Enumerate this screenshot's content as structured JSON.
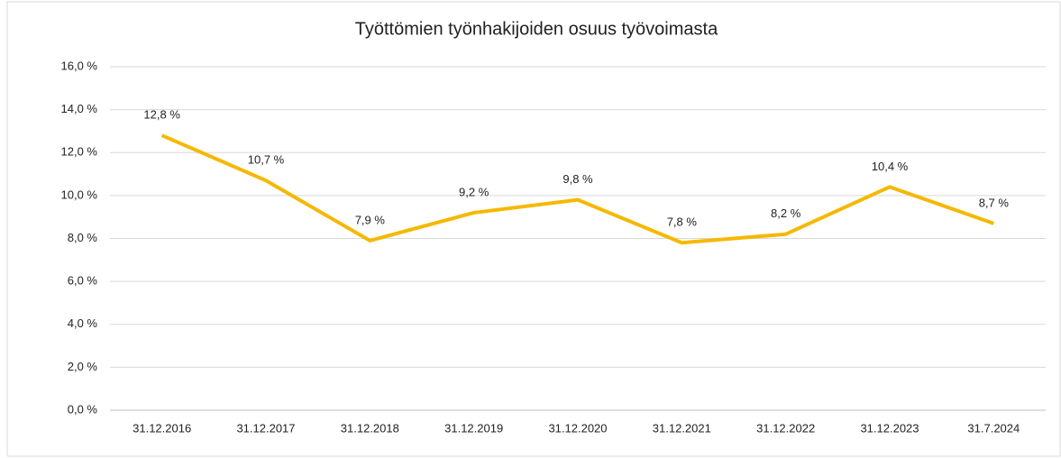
{
  "chart_data": {
    "type": "line",
    "title": "Työttömien työnhakijoiden osuus työvoimasta",
    "categories": [
      "31.12.2016",
      "31.12.2017",
      "31.12.2018",
      "31.12.2019",
      "31.12.2020",
      "31.12.2021",
      "31.12.2022",
      "31.12.2023",
      "31.7.2024"
    ],
    "series": [
      {
        "color": "#f5b800",
        "values": [
          12.8,
          10.7,
          7.9,
          9.2,
          9.8,
          7.8,
          8.2,
          10.4,
          8.7
        ],
        "value_labels": [
          "12,8 %",
          "10,7 %",
          "7,9 %",
          "9,2 %",
          "9,8 %",
          "7,8 %",
          "8,2 %",
          "10,4 %",
          "8,7 %"
        ]
      }
    ],
    "ylim": [
      0,
      16
    ],
    "yticks": [
      {
        "value": 0,
        "label": "0,0 %"
      },
      {
        "value": 2,
        "label": "2,0 %"
      },
      {
        "value": 4,
        "label": "4,0 %"
      },
      {
        "value": 6,
        "label": "6,0 %"
      },
      {
        "value": 8,
        "label": "8,0 %"
      },
      {
        "value": 10,
        "label": "10,0 %"
      },
      {
        "value": 12,
        "label": "12,0 %"
      },
      {
        "value": 14,
        "label": "14,0 %"
      },
      {
        "value": 16,
        "label": "16,0 %"
      }
    ],
    "grid": true
  }
}
